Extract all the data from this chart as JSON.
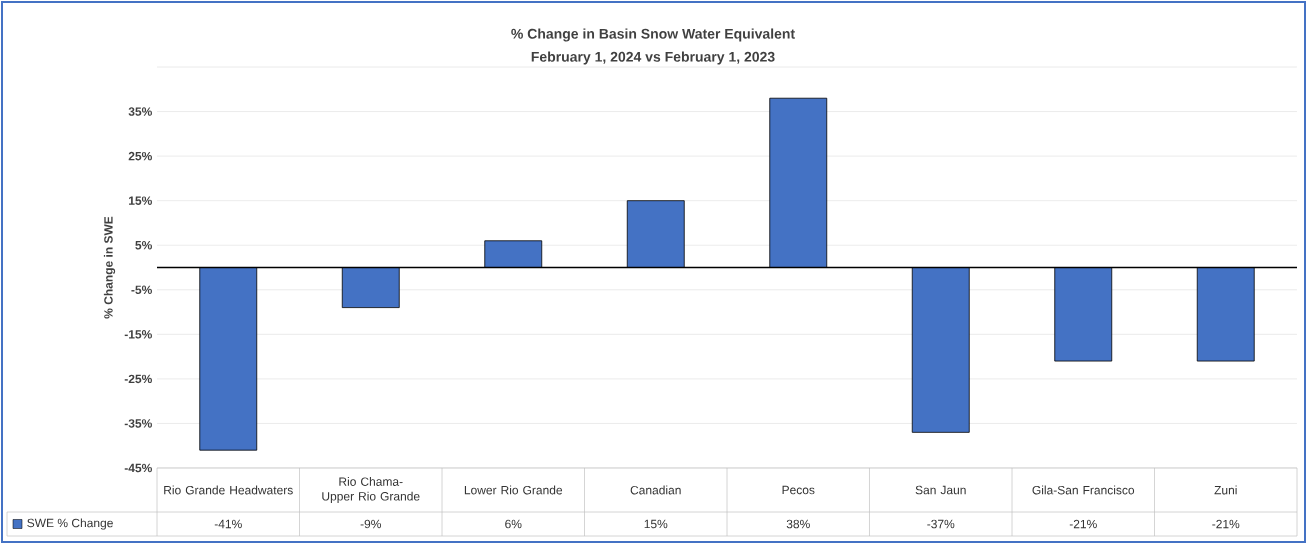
{
  "chart_data": {
    "type": "bar",
    "title": "% Change in Basin Snow Water Equivalent",
    "subtitle": "February 1, 2024 vs February 1, 2023",
    "ylabel": "% Change in SWE",
    "categories": [
      "Rio Grande Headwaters",
      "Rio Chama-Upper Rio Grande",
      "Lower Rio Grande",
      "Canadian",
      "Pecos",
      "San Jaun",
      "Gila-San Francisco",
      "Zuni"
    ],
    "series": [
      {
        "name": "SWE % Change",
        "color": "#4472c4",
        "values": [
          -41,
          -9,
          6,
          15,
          38,
          -37,
          -21,
          -21
        ],
        "value_labels": [
          "-41%",
          "-9%",
          "6%",
          "15%",
          "38%",
          "-37%",
          "-21%",
          "-21%"
        ]
      }
    ],
    "ylim": [
      -45,
      45
    ],
    "yticks": [
      {
        "value": -45,
        "label": "-45%"
      },
      {
        "value": -35,
        "label": "-35%"
      },
      {
        "value": -25,
        "label": "-25%"
      },
      {
        "value": -15,
        "label": "-15%"
      },
      {
        "value": -5,
        "label": "-5%"
      },
      {
        "value": 5,
        "label": "5%"
      },
      {
        "value": 15,
        "label": "15%"
      },
      {
        "value": 25,
        "label": "25%"
      },
      {
        "value": 35,
        "label": "35%"
      },
      {
        "value": 45,
        "label": null
      }
    ],
    "grid": "y",
    "legend": "bottom"
  }
}
